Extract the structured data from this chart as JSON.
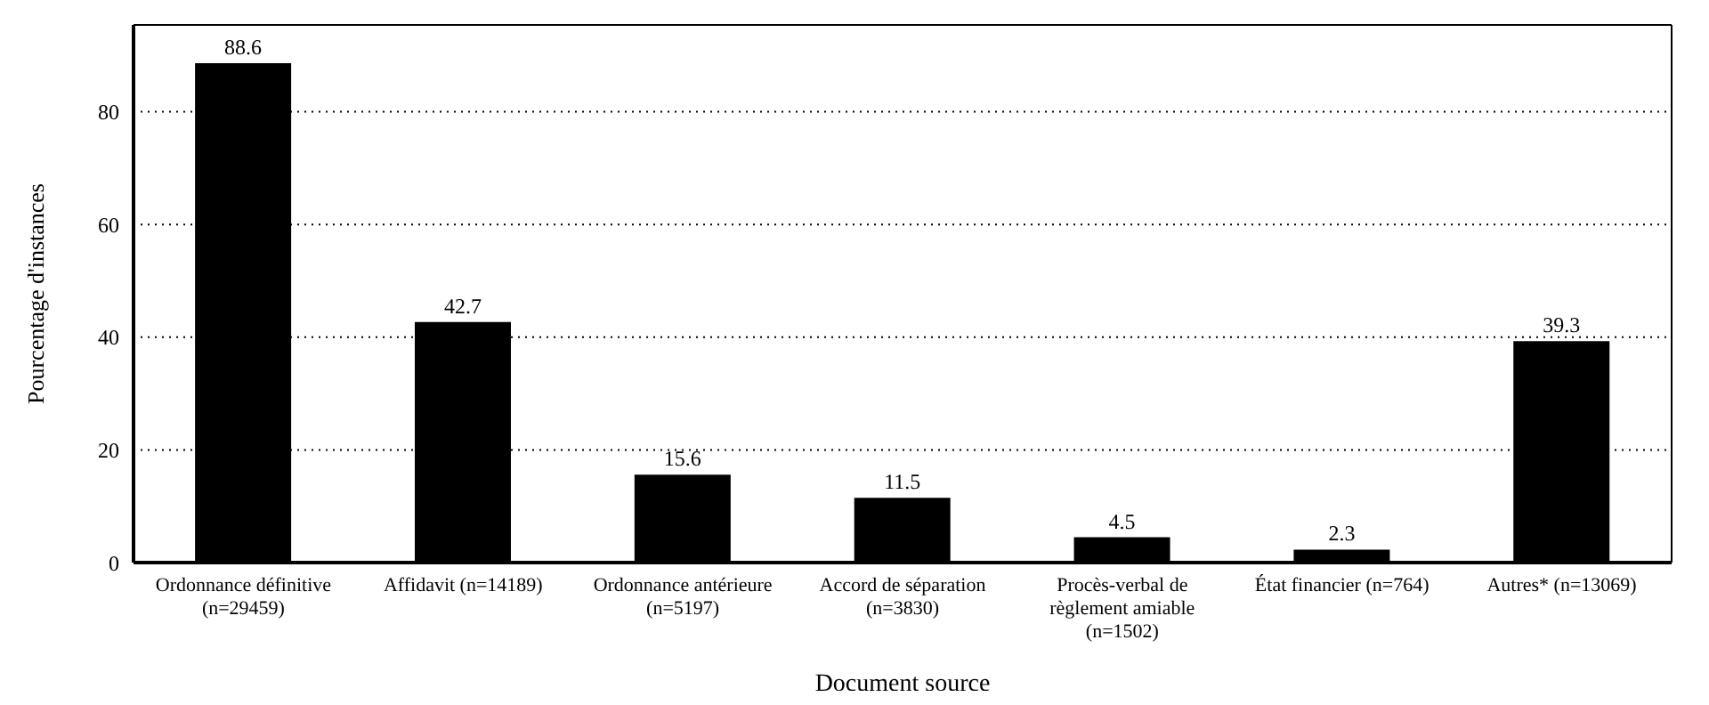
{
  "chart_data": {
    "type": "bar",
    "xlabel": "Document source",
    "ylabel": "Pourcentage d'instances",
    "categories": [
      "Ordonnance définitive (n=29459)",
      "Affidavit (n=14189)",
      "Ordonnance antérieure (n=5197)",
      "Accord de séparation (n=3830)",
      "Procès-verbal de règlement amiable (n=1502)",
      "État financier (n=764)",
      "Autres* (n=13069)"
    ],
    "values": [
      88.6,
      42.7,
      15.6,
      11.5,
      4.5,
      2.3,
      39.3
    ],
    "color": "#000000",
    "ylim": [
      0,
      95.4
    ],
    "yticks": [
      0,
      20,
      40,
      60,
      80
    ],
    "grid": "y",
    "data_labels": true
  }
}
